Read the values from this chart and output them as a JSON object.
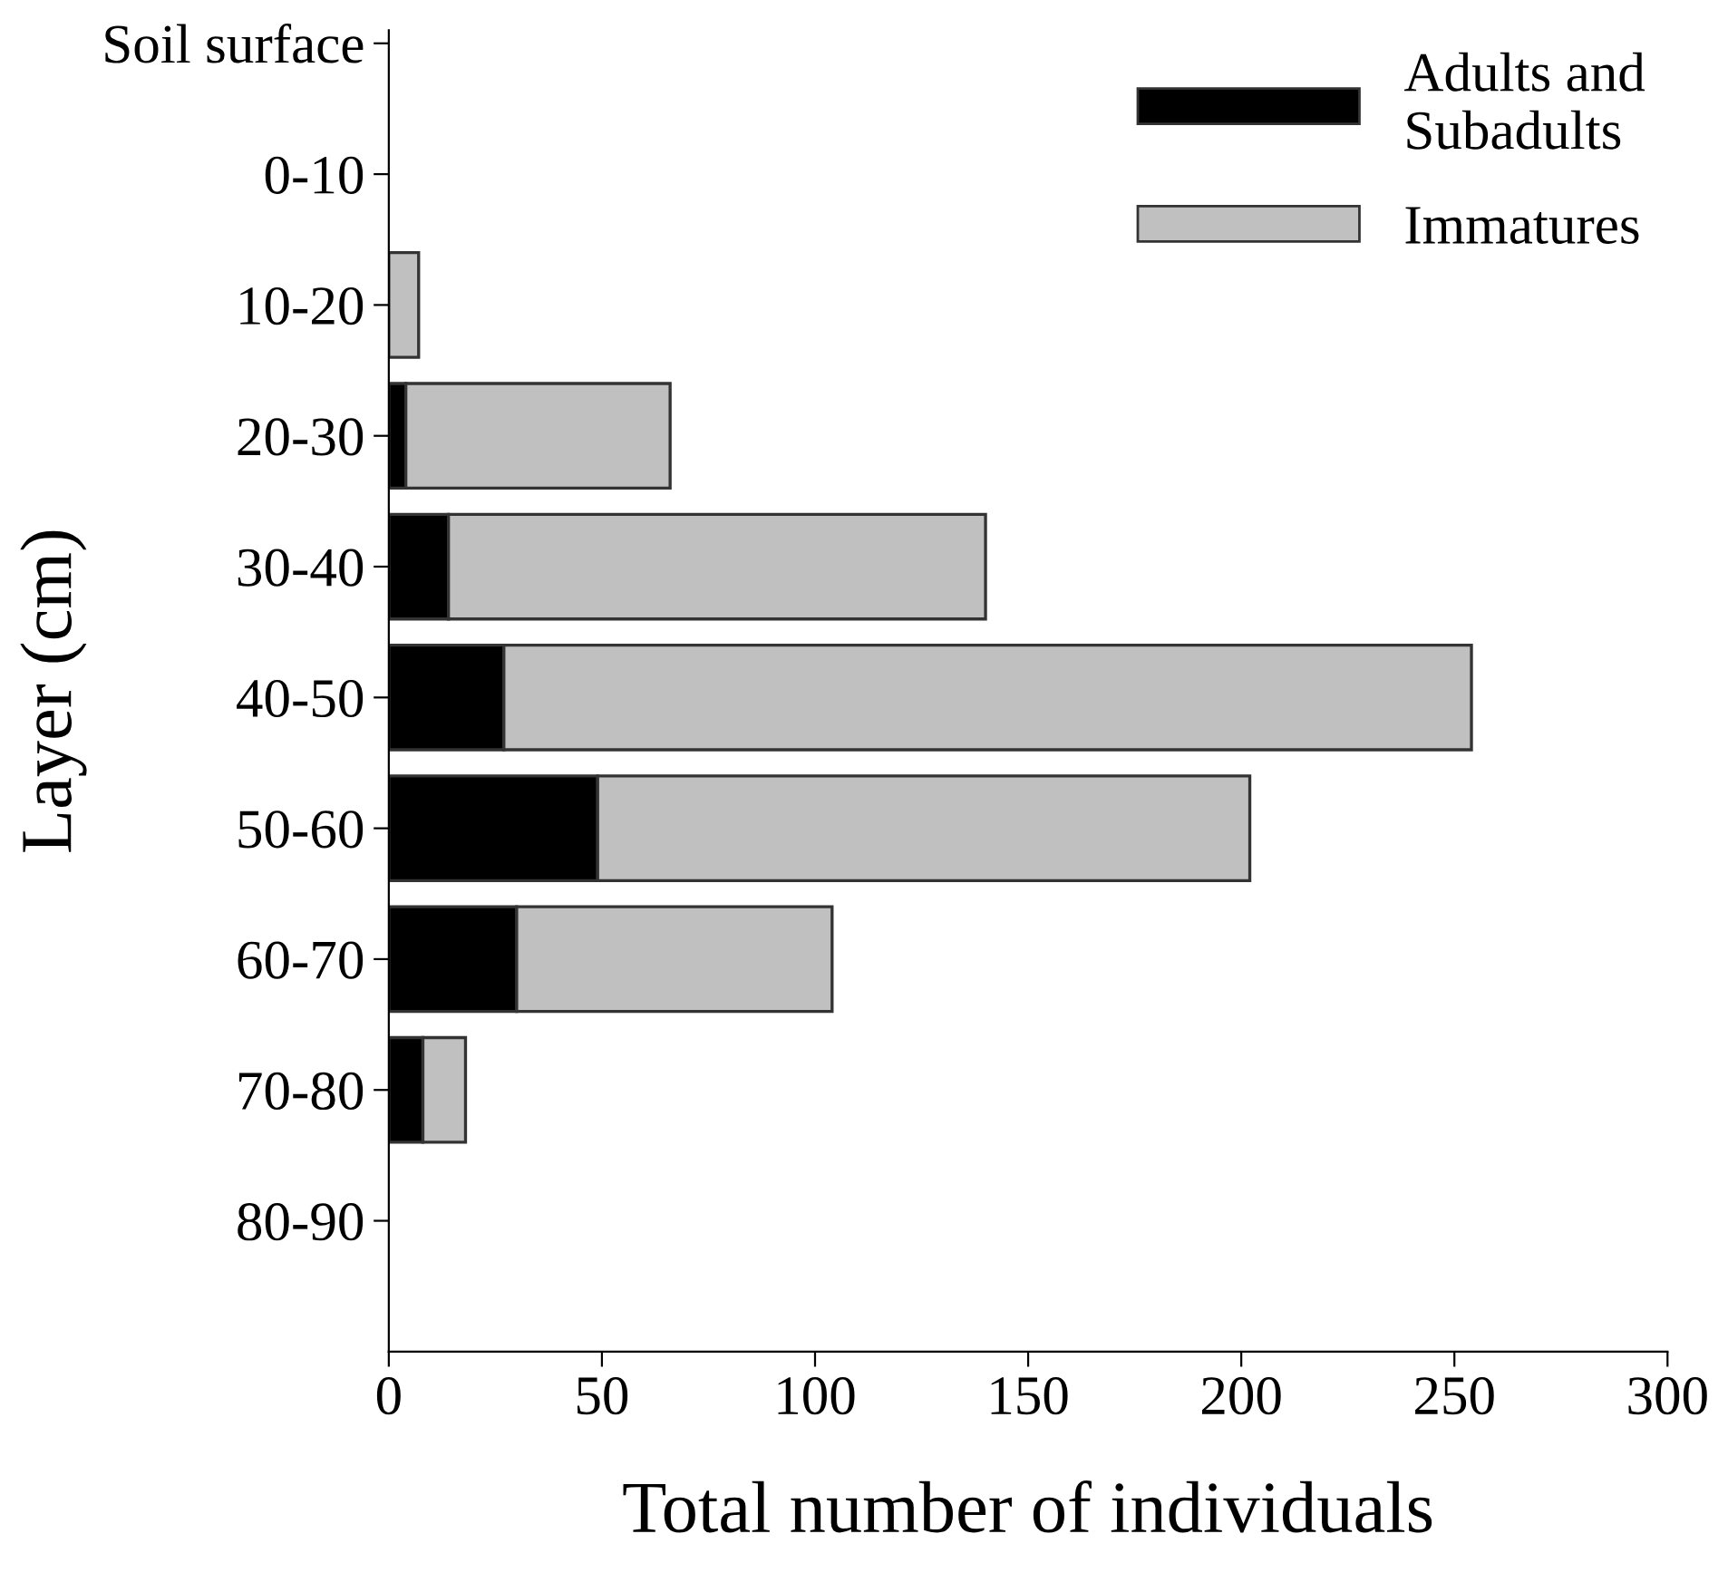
{
  "chart_data": {
    "type": "bar",
    "orientation": "horizontal",
    "stacked": true,
    "ylabel": "Layer (cm)",
    "xlabel": "Total number of individuals",
    "categories": [
      "Soil surface",
      "0-10",
      "10-20",
      "20-30",
      "30-40",
      "40-50",
      "50-60",
      "60-70",
      "70-80",
      "80-90"
    ],
    "series": [
      {
        "name": "Adults and\nSubadults",
        "color": "#000000",
        "values": [
          0,
          0,
          0,
          4,
          14,
          27,
          49,
          30,
          8,
          0
        ]
      },
      {
        "name": "Immatures",
        "color": "#c0c0c0",
        "values": [
          0,
          0,
          7,
          62,
          126,
          227,
          153,
          74,
          10,
          0
        ]
      }
    ],
    "xlim": [
      0,
      300
    ],
    "xticks": [
      0,
      50,
      100,
      150,
      200,
      250,
      300
    ],
    "grid": false,
    "legend": "top right"
  }
}
